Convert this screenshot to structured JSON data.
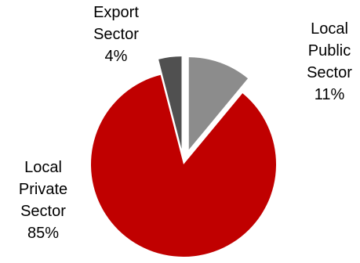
{
  "chart_data": {
    "type": "pie",
    "title": "",
    "slices": [
      {
        "category": "Local Public Sector",
        "label_lines": [
          "Local",
          "Public",
          "Sector"
        ],
        "value": 11,
        "value_label": "11%",
        "color": "#8c8c8c",
        "exploded": true
      },
      {
        "category": "Local Private Sector",
        "label_lines": [
          "Local",
          "Private",
          "Sector"
        ],
        "value": 85,
        "value_label": "85%",
        "color": "#c00000",
        "exploded": false
      },
      {
        "category": "Export Sector",
        "label_lines": [
          "Export",
          "Sector"
        ],
        "value": 4,
        "value_label": "4%",
        "color": "#505050",
        "exploded": true
      }
    ],
    "start_angle_deg": 0,
    "direction": "clockwise",
    "legend": "none"
  }
}
